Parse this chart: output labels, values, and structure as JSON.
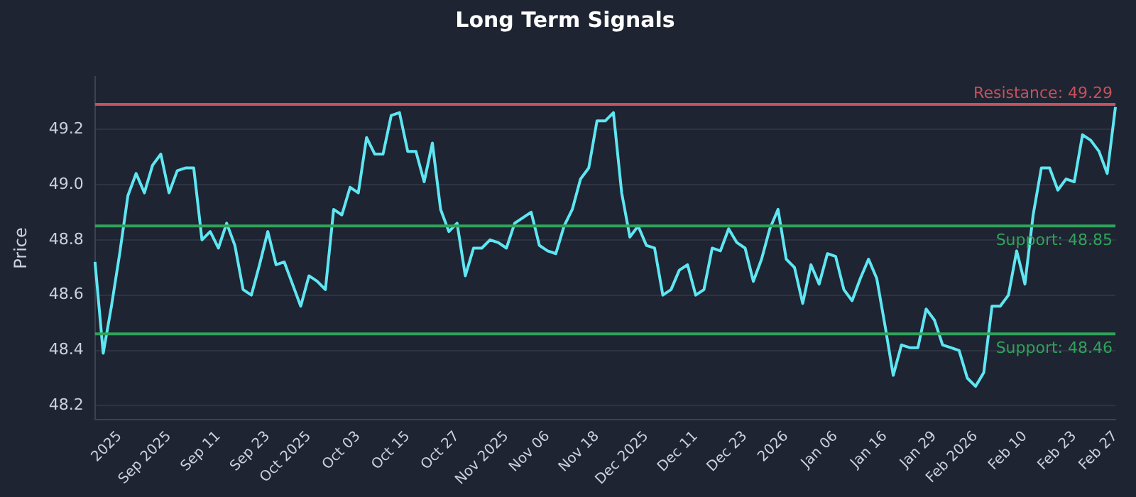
{
  "chart_data": {
    "type": "line",
    "title": "Long Term Signals",
    "ylabel": "Price",
    "categories": [
      null,
      null,
      null,
      "2025",
      null,
      null,
      null,
      null,
      null,
      "Sep 2025",
      null,
      null,
      null,
      null,
      null,
      "Sep 11",
      null,
      null,
      null,
      null,
      null,
      "Sep 23",
      null,
      null,
      null,
      null,
      "Oct 2025",
      null,
      null,
      null,
      null,
      null,
      "Oct 03",
      null,
      null,
      null,
      null,
      null,
      "Oct 15",
      null,
      null,
      null,
      null,
      null,
      "Oct 27",
      null,
      null,
      null,
      null,
      null,
      "Nov 2025",
      null,
      null,
      null,
      null,
      "Nov 06",
      null,
      null,
      null,
      null,
      null,
      "Nov 18",
      null,
      null,
      null,
      null,
      null,
      "Dec 2025",
      null,
      null,
      null,
      null,
      null,
      "Dec 11",
      null,
      null,
      null,
      null,
      null,
      "Dec 23",
      null,
      null,
      null,
      null,
      "2026",
      null,
      null,
      null,
      null,
      null,
      "Jan 06",
      null,
      null,
      null,
      null,
      null,
      "Jan 16",
      null,
      null,
      null,
      null,
      null,
      "Jan 29",
      null,
      null,
      null,
      null,
      "Feb 2026",
      null,
      null,
      null,
      null,
      null,
      "Feb 10",
      null,
      null,
      null,
      null,
      null,
      "Feb 23",
      null,
      null,
      null,
      null,
      "Feb 27"
    ],
    "series": [
      {
        "color": "#5ee6f2",
        "values": [
          48.72,
          48.39,
          48.56,
          48.75,
          48.96,
          49.04,
          48.97,
          49.07,
          49.11,
          48.97,
          49.05,
          49.06,
          49.06,
          48.8,
          48.83,
          48.77,
          48.86,
          48.78,
          48.62,
          48.6,
          48.71,
          48.83,
          48.71,
          48.72,
          48.64,
          48.56,
          48.67,
          48.65,
          48.62,
          48.91,
          48.89,
          48.99,
          48.97,
          49.17,
          49.11,
          49.11,
          49.25,
          49.26,
          49.12,
          49.12,
          49.01,
          49.15,
          48.91,
          48.83,
          48.86,
          48.67,
          48.77,
          48.77,
          48.8,
          48.79,
          48.77,
          48.86,
          48.88,
          48.9,
          48.78,
          48.76,
          48.75,
          48.85,
          48.91,
          49.02,
          49.06,
          49.23,
          49.23,
          49.26,
          48.97,
          48.81,
          48.85,
          48.78,
          48.77,
          48.6,
          48.62,
          48.69,
          48.71,
          48.6,
          48.62,
          48.77,
          48.76,
          48.84,
          48.79,
          48.77,
          48.65,
          48.73,
          48.84,
          48.91,
          48.73,
          48.7,
          48.57,
          48.71,
          48.64,
          48.75,
          48.74,
          48.62,
          48.58,
          48.66,
          48.73,
          48.66,
          48.49,
          48.31,
          48.42,
          48.41,
          48.41,
          48.55,
          48.51,
          48.42,
          48.41,
          48.4,
          48.3,
          48.27,
          48.32,
          48.56,
          48.56,
          48.6,
          48.76,
          48.64,
          48.89,
          49.06,
          49.06,
          48.98,
          49.02,
          49.01,
          49.18,
          49.16,
          49.12,
          49.04,
          49.28
        ]
      }
    ],
    "ylim": [
      48.15,
      49.39
    ],
    "yticks": [
      48.2,
      48.4,
      48.6,
      48.8,
      {
        "value": 49,
        "label": "49.0"
      },
      49.2
    ],
    "grid": "y",
    "marker": "none",
    "line_style": "solid",
    "legend": false,
    "ref_lines": [
      {
        "axis": "y",
        "value": 49.29,
        "label": "Resistance: 49.29",
        "color": "#c9505c"
      },
      {
        "axis": "y",
        "value": 48.85,
        "label": "Support: 48.85",
        "color": "#2fa35a"
      },
      {
        "axis": "y",
        "value": 48.46,
        "label": "Support: 48.46",
        "color": "#2fa35a"
      }
    ]
  }
}
